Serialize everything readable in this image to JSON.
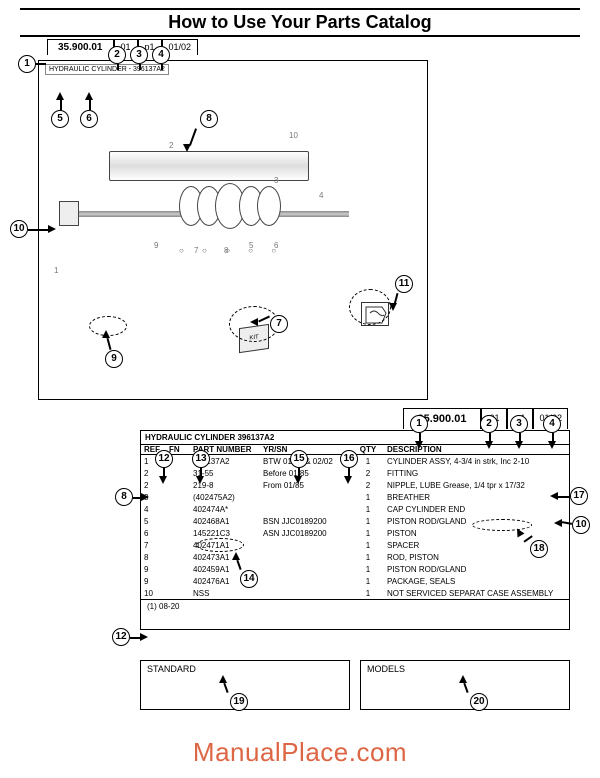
{
  "title": "How to Use Your Parts Catalog",
  "watermark": "ManualPlace.com",
  "upper_tabs": {
    "main": "35.900.01",
    "t2": "01",
    "t3": "p1",
    "t4": "01/02"
  },
  "section_label": "HYDRAULIC CYLINDER - 396137A2",
  "kit_label": "KIT",
  "lower_tabs": {
    "main": "35.900.01",
    "t2": "01",
    "t3": "p1",
    "t4": "01/02"
  },
  "table_title": "HYDRAULIC CYLINDER  396137A2",
  "table_headers": {
    "ref": "REF",
    "fn": "FN",
    "pn": "PART NUMBER",
    "yr": "YR/SN",
    "qty": "QTY",
    "desc": "DESCRIPTION"
  },
  "rows": [
    {
      "ref": "1",
      "fn": "",
      "pn": "396137A2",
      "yr": "BTW 01/85 & 02/02",
      "qty": "1",
      "desc": "CYLINDER ASSY, 4-3/4 in strk, Inc 2-10"
    },
    {
      "ref": "2",
      "fn": "",
      "pn": "31-55",
      "yr": "Before 01/85",
      "qty": "2",
      "desc": "FITTING"
    },
    {
      "ref": "2",
      "fn": "",
      "pn": "219-8",
      "yr": "From 01/85",
      "qty": "2",
      "desc": "NIPPLE, LUBE Grease, 1/4 tpr x 17/32"
    },
    {
      "ref": "3",
      "fn": "",
      "pn": "(402475A2)",
      "yr": "",
      "qty": "1",
      "desc": "BREATHER"
    },
    {
      "ref": "4",
      "fn": "",
      "pn": "402474A*",
      "yr": "",
      "qty": "1",
      "desc": "CAP CYLINDER END"
    },
    {
      "ref": "5",
      "fn": "",
      "pn": "402468A1",
      "yr": "BSN JJC0189200",
      "qty": "1",
      "desc": "PISTON ROD/GLAND"
    },
    {
      "ref": "6",
      "fn": "",
      "pn": "145221C3",
      "yr": "ASN JJC0189200",
      "qty": "1",
      "desc": "PISTON"
    },
    {
      "ref": "7",
      "fn": "",
      "pn": "402471A1",
      "yr": "",
      "qty": "1",
      "desc": "SPACER"
    },
    {
      "ref": "8",
      "fn": "",
      "pn": "402473A1",
      "yr": "",
      "qty": "1",
      "desc": "ROD, PISTON"
    },
    {
      "ref": "9",
      "fn": "",
      "pn": "402459A1",
      "yr": "",
      "qty": "1",
      "desc": "PISTON ROD/GLAND"
    },
    {
      "ref": "9",
      "fn": "",
      "pn": "402476A1",
      "yr": "",
      "qty": "1",
      "desc": "PACKAGE, SEALS"
    },
    {
      "ref": "10",
      "fn": "",
      "pn": "NSS",
      "yr": "",
      "qty": "1",
      "desc": "NOT SERVICED SEPARAT CASE ASSEMBLY"
    }
  ],
  "footnote": "(1)   08-20",
  "bottom_boxes": {
    "standard": "STANDARD",
    "models": "MODELS"
  },
  "diagram_nums": [
    "1",
    "2",
    "3",
    "4",
    "5",
    "6",
    "7",
    "8",
    "9",
    "10"
  ],
  "callouts": {
    "c1": "1",
    "c2": "2",
    "c3": "3",
    "c4": "4",
    "c5": "5",
    "c6": "6",
    "c7": "7",
    "c8": "8",
    "c9": "9",
    "c10": "10",
    "c11": "11",
    "c12": "12",
    "c13": "13",
    "c14": "14",
    "c15": "15",
    "c16": "16",
    "c17": "17",
    "c18": "18",
    "c19": "19",
    "c20": "20",
    "lower_c1": "1",
    "lower_c2": "2",
    "lower_c3": "3",
    "lower_c4": "4",
    "lower_c8": "8",
    "lower_c10": "10",
    "lower_c12": "12"
  }
}
